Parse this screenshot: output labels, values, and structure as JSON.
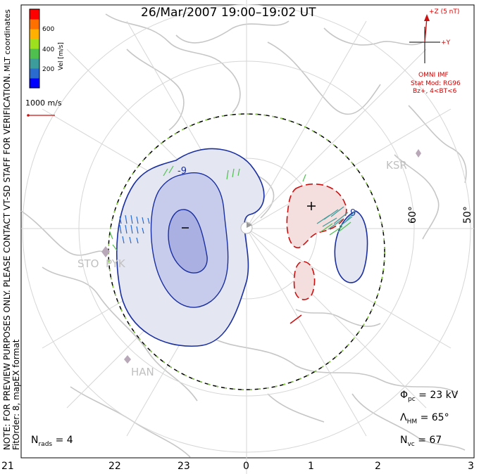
{
  "title": "26/Mar/2007 19:00–19:02 UT",
  "left_note": {
    "line1": "NOTE: FOR PREVIEW PURPOSES ONLY. PLEASE CONTACT VT-SD STAFF FOR VERIFICATION.",
    "line2": "FitOrder: 8, mapEX format"
  },
  "mlt_label": "MLT coordinates",
  "colorbar": {
    "title": "Vel [m/s]",
    "ticks": [
      "600",
      "400",
      "200"
    ],
    "colors": [
      "#0000ff",
      "#2a6bd0",
      "#3c9c9c",
      "#4fc04f",
      "#9ee01e",
      "#ffb000",
      "#ff7000",
      "#ff0000"
    ]
  },
  "scale_vector": "1000 m/s",
  "imf": {
    "z_label": "+Z (5 nT)",
    "y_label": "+Y",
    "source": "OMNI IMF",
    "model": "Stat Mod: RG96",
    "condition": "Bz+, 4<BT<6"
  },
  "stations": [
    "KSR",
    "STO",
    "PYK",
    "HAN"
  ],
  "latitude_labels": [
    "60°",
    "50°"
  ],
  "contour_values": [
    "-9",
    "+",
    "−",
    "9"
  ],
  "stats": {
    "phi_pc_label": "Φ",
    "phi_pc_sub": "pc",
    "phi_pc_value": "= 23 kV",
    "lambda_hm_label": "Λ",
    "lambda_hm_sub": "HM",
    "lambda_hm_value": "= 65°",
    "n_vc_label": "N",
    "n_vc_sub": "vc",
    "n_vc_value": "= 67",
    "n_rads_label": "N",
    "n_rads_sub": "rads",
    "n_rads_value": "= 4"
  },
  "mlt_axis": [
    "21",
    "22",
    "23",
    "0",
    "1",
    "2",
    "3"
  ],
  "colors": {
    "land": "#c8c8c8",
    "grid": "#d0d0d0",
    "negative_contour": "#1a2fa0",
    "positive_contour": "#cc1010",
    "negative_fill": "#e4e6f2",
    "negative_fill_mid": "#c8ccec",
    "negative_fill_core": "#aab0e2",
    "positive_fill": "#f5dede",
    "boundary_green": "#88cc44"
  }
}
